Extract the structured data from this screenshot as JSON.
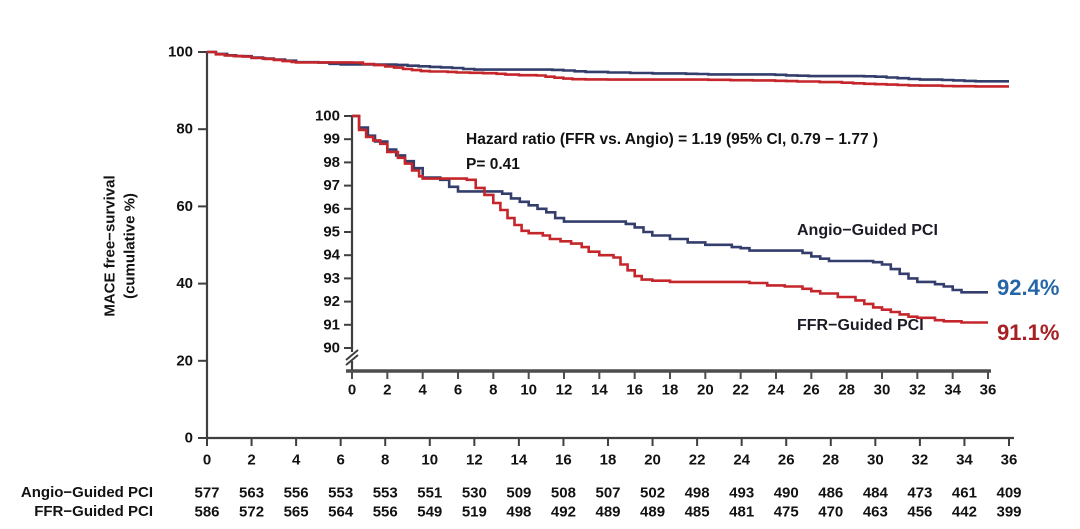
{
  "figure": {
    "y_axis_title_line1": "MACE free−survival",
    "y_axis_title_line2": "(cumulative %)"
  },
  "colors": {
    "angio_curve": "#333e6d",
    "ffr_curve": "#c4262b",
    "angio_pct_label": "#2766a6",
    "ffr_pct_label": "#a62024",
    "axis": "#3f3f3f",
    "text": "#121212"
  },
  "chart_data": {
    "type": "line",
    "subtype": "kaplan-meier-step",
    "title": "",
    "xlabel": "",
    "ylabel": "MACE free−survival (cumulative %)",
    "x_axis": {
      "unit": "months",
      "range": [
        0,
        36
      ],
      "ticks": [
        0,
        2,
        4,
        6,
        8,
        10,
        12,
        14,
        16,
        18,
        20,
        22,
        24,
        26,
        28,
        30,
        32,
        34,
        36
      ]
    },
    "main_panel": {
      "ylim": [
        0,
        100
      ],
      "y_ticks": [
        0,
        20,
        40,
        60,
        80,
        100
      ],
      "grid": false
    },
    "inset_panel": {
      "ylim": [
        90,
        100
      ],
      "y_ticks": [
        90,
        91,
        92,
        93,
        94,
        95,
        96,
        97,
        98,
        99,
        100
      ],
      "axis_break": true,
      "grid": false
    },
    "annotations": {
      "hazard_ratio_text": "Hazard ratio (FFR vs. Angio) = 1.19  (95% CI, 0.79 − 1.77 )",
      "p_value_text": "P= 0.41"
    },
    "legend_position": "labels-on-curves",
    "series": [
      {
        "name": "Angio−Guided PCI",
        "final_value": 92.4,
        "final_label": "92.4%",
        "steps": [
          [
            0,
            100
          ],
          [
            0.4,
            99.5
          ],
          [
            0.9,
            99.15
          ],
          [
            1.3,
            98.9
          ],
          [
            2,
            98.55
          ],
          [
            2.5,
            98.3
          ],
          [
            3,
            98.05
          ],
          [
            3.5,
            97.75
          ],
          [
            4,
            97.35
          ],
          [
            5,
            97.25
          ],
          [
            5.5,
            96.95
          ],
          [
            6,
            96.75
          ],
          [
            8.5,
            96.65
          ],
          [
            9,
            96.45
          ],
          [
            9.5,
            96.3
          ],
          [
            10,
            96.15
          ],
          [
            10.5,
            96.0
          ],
          [
            11,
            95.85
          ],
          [
            11.5,
            95.6
          ],
          [
            12,
            95.45
          ],
          [
            15.5,
            95.35
          ],
          [
            16,
            95.2
          ],
          [
            16.5,
            95.0
          ],
          [
            17,
            94.85
          ],
          [
            18,
            94.7
          ],
          [
            19,
            94.55
          ],
          [
            20,
            94.45
          ],
          [
            21.5,
            94.35
          ],
          [
            22,
            94.3
          ],
          [
            22.5,
            94.2
          ],
          [
            25.5,
            94.1
          ],
          [
            26,
            93.95
          ],
          [
            26.5,
            93.85
          ],
          [
            27,
            93.75
          ],
          [
            29.5,
            93.7
          ],
          [
            30,
            93.6
          ],
          [
            30.5,
            93.4
          ],
          [
            31,
            93.2
          ],
          [
            31.5,
            93.0
          ],
          [
            32,
            92.85
          ],
          [
            33,
            92.75
          ],
          [
            33.5,
            92.65
          ],
          [
            34,
            92.5
          ],
          [
            34.5,
            92.4
          ],
          [
            36,
            92.4
          ]
        ]
      },
      {
        "name": "FFR−Guided PCI",
        "final_value": 91.1,
        "final_label": "91.1%",
        "steps": [
          [
            0,
            100
          ],
          [
            0.4,
            99.4
          ],
          [
            0.8,
            99.1
          ],
          [
            1.2,
            98.95
          ],
          [
            1.6,
            98.8
          ],
          [
            2,
            98.45
          ],
          [
            2.6,
            98.2
          ],
          [
            3,
            97.95
          ],
          [
            3.4,
            97.65
          ],
          [
            3.8,
            97.4
          ],
          [
            4,
            97.3
          ],
          [
            6.5,
            97.25
          ],
          [
            7,
            96.9
          ],
          [
            7.5,
            96.6
          ],
          [
            8,
            96.25
          ],
          [
            8.4,
            95.95
          ],
          [
            8.8,
            95.6
          ],
          [
            9.2,
            95.3
          ],
          [
            9.6,
            95.05
          ],
          [
            10,
            94.95
          ],
          [
            10.8,
            94.85
          ],
          [
            11.2,
            94.7
          ],
          [
            11.8,
            94.6
          ],
          [
            12.4,
            94.5
          ],
          [
            13,
            94.35
          ],
          [
            13.4,
            94.15
          ],
          [
            14,
            94.0
          ],
          [
            14.8,
            93.9
          ],
          [
            15.2,
            93.6
          ],
          [
            15.6,
            93.35
          ],
          [
            16,
            93.1
          ],
          [
            16.4,
            92.95
          ],
          [
            17,
            92.9
          ],
          [
            18,
            92.85
          ],
          [
            22.5,
            92.8
          ],
          [
            23.5,
            92.7
          ],
          [
            24.5,
            92.65
          ],
          [
            25.5,
            92.55
          ],
          [
            26,
            92.45
          ],
          [
            26.5,
            92.35
          ],
          [
            27.5,
            92.2
          ],
          [
            28.5,
            92.05
          ],
          [
            29,
            91.9
          ],
          [
            29.5,
            91.75
          ],
          [
            30,
            91.65
          ],
          [
            30.5,
            91.55
          ],
          [
            31,
            91.45
          ],
          [
            31.5,
            91.35
          ],
          [
            32,
            91.3
          ],
          [
            33,
            91.2
          ],
          [
            33.5,
            91.15
          ],
          [
            34.5,
            91.1
          ],
          [
            36,
            91.1
          ]
        ]
      }
    ]
  },
  "at_risk_table": {
    "rows": [
      {
        "label": "Angio−Guided PCI",
        "values": [
          577,
          563,
          556,
          553,
          553,
          551,
          530,
          509,
          508,
          507,
          502,
          498,
          493,
          490,
          486,
          484,
          473,
          461,
          409
        ]
      },
      {
        "label": "FFR−Guided PCI",
        "values": [
          586,
          572,
          565,
          564,
          556,
          549,
          519,
          498,
          492,
          489,
          489,
          485,
          481,
          475,
          470,
          463,
          456,
          442,
          399
        ]
      }
    ]
  }
}
